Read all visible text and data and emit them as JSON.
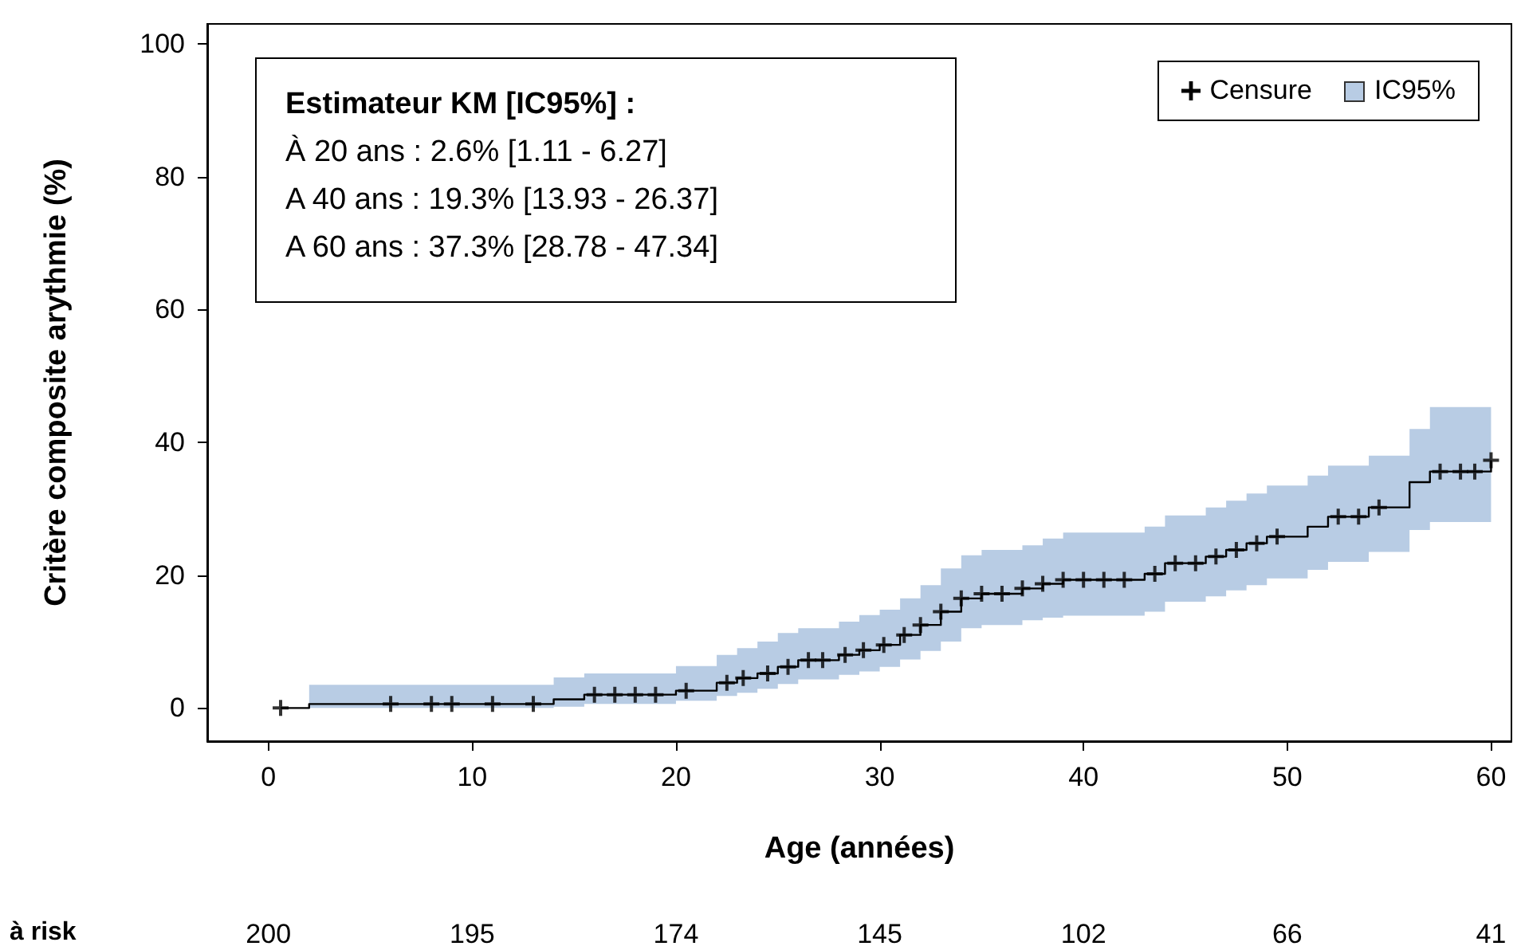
{
  "chart_data": {
    "type": "step",
    "xlabel": "Age (années)",
    "ylabel": "Critère composite arythmie (%)",
    "xlim": [
      -3,
      61
    ],
    "ylim": [
      -5,
      103
    ],
    "xticks": [
      0,
      10,
      20,
      30,
      40,
      50,
      60
    ],
    "yticks": [
      0,
      20,
      40,
      60,
      80,
      100
    ],
    "grid": false,
    "legend": "top right",
    "series": [
      {
        "color": "#000000",
        "marker": "none",
        "x": [
          0.6,
          2,
          14,
          15.5,
          20,
          22,
          23,
          24,
          25,
          26,
          28,
          29,
          30,
          31,
          32,
          33,
          34,
          35,
          37,
          38,
          39,
          43,
          44,
          46,
          47,
          48,
          49,
          51,
          52,
          54,
          56,
          57,
          60
        ],
        "values": [
          0,
          0.6,
          1.3,
          2,
          2.6,
          3.8,
          4.5,
          5.2,
          6.2,
          7.2,
          8,
          8.7,
          9.5,
          11,
          12.5,
          14.5,
          16.5,
          17.2,
          18,
          18.7,
          19.3,
          20.2,
          21.8,
          22.8,
          23.8,
          24.8,
          25.8,
          27.3,
          28.8,
          30.2,
          34,
          35.6,
          37.3
        ],
        "lower": [
          null,
          0,
          0.2,
          0.6,
          1.1,
          1.8,
          2.3,
          2.9,
          3.6,
          4.3,
          5,
          5.5,
          6.2,
          7.3,
          8.6,
          10,
          12,
          12.5,
          13.2,
          13.6,
          13.9,
          14.5,
          16,
          16.8,
          17.7,
          18.5,
          19.5,
          20.8,
          22,
          23.5,
          26.8,
          28,
          28
        ],
        "upper": [
          null,
          3.5,
          4.6,
          5.2,
          6.3,
          8,
          9,
          10,
          11.3,
          12,
          13,
          14,
          14.8,
          16.5,
          18.5,
          21,
          23,
          23.8,
          24.5,
          25.5,
          26.4,
          27.3,
          29,
          30.2,
          31.2,
          32.3,
          33.5,
          35,
          36.5,
          38,
          42,
          45.3,
          45.3
        ]
      },
      {
        "type": "scatter",
        "name": "Censure",
        "color": "#000000",
        "marker": "cross",
        "x": [
          0.6,
          6,
          8,
          9,
          11,
          13,
          16,
          17,
          18,
          19,
          20.5,
          22.5,
          23.3,
          24.5,
          25.5,
          26.5,
          27.2,
          28.3,
          29.2,
          30.2,
          31.2,
          32,
          33,
          34,
          35,
          36,
          37,
          38,
          39,
          40,
          41,
          42,
          43.5,
          44.5,
          45.5,
          46.5,
          47.5,
          48.5,
          49.5,
          52.5,
          53.5,
          54.5,
          57.5,
          58.5,
          59.2,
          60
        ],
        "values": [
          0,
          0.6,
          0.6,
          0.6,
          0.6,
          0.6,
          2,
          2,
          2,
          2,
          2.6,
          3.8,
          4.5,
          5.2,
          6.2,
          7.2,
          7.2,
          8,
          8.7,
          9.5,
          11,
          12.5,
          14.5,
          16.5,
          17.2,
          17.2,
          18,
          18.7,
          19.3,
          19.3,
          19.3,
          19.3,
          20.2,
          21.8,
          21.8,
          22.8,
          23.8,
          24.8,
          25.8,
          28.8,
          28.8,
          30.2,
          35.6,
          35.6,
          35.6,
          37.3
        ]
      }
    ],
    "annotations": [
      "IC95%",
      "Estimateur KM [IC95%] :",
      "À 20 ans : 2.6% [1.11 - 6.27]",
      "A 40 ans : 19.3% [13.93 - 26.37]",
      "A 60 ans : 37.3% [28.78 - 47.34]",
      "à risk",
      "200",
      "195",
      "174",
      "145",
      "102",
      "66",
      "41"
    ]
  }
}
